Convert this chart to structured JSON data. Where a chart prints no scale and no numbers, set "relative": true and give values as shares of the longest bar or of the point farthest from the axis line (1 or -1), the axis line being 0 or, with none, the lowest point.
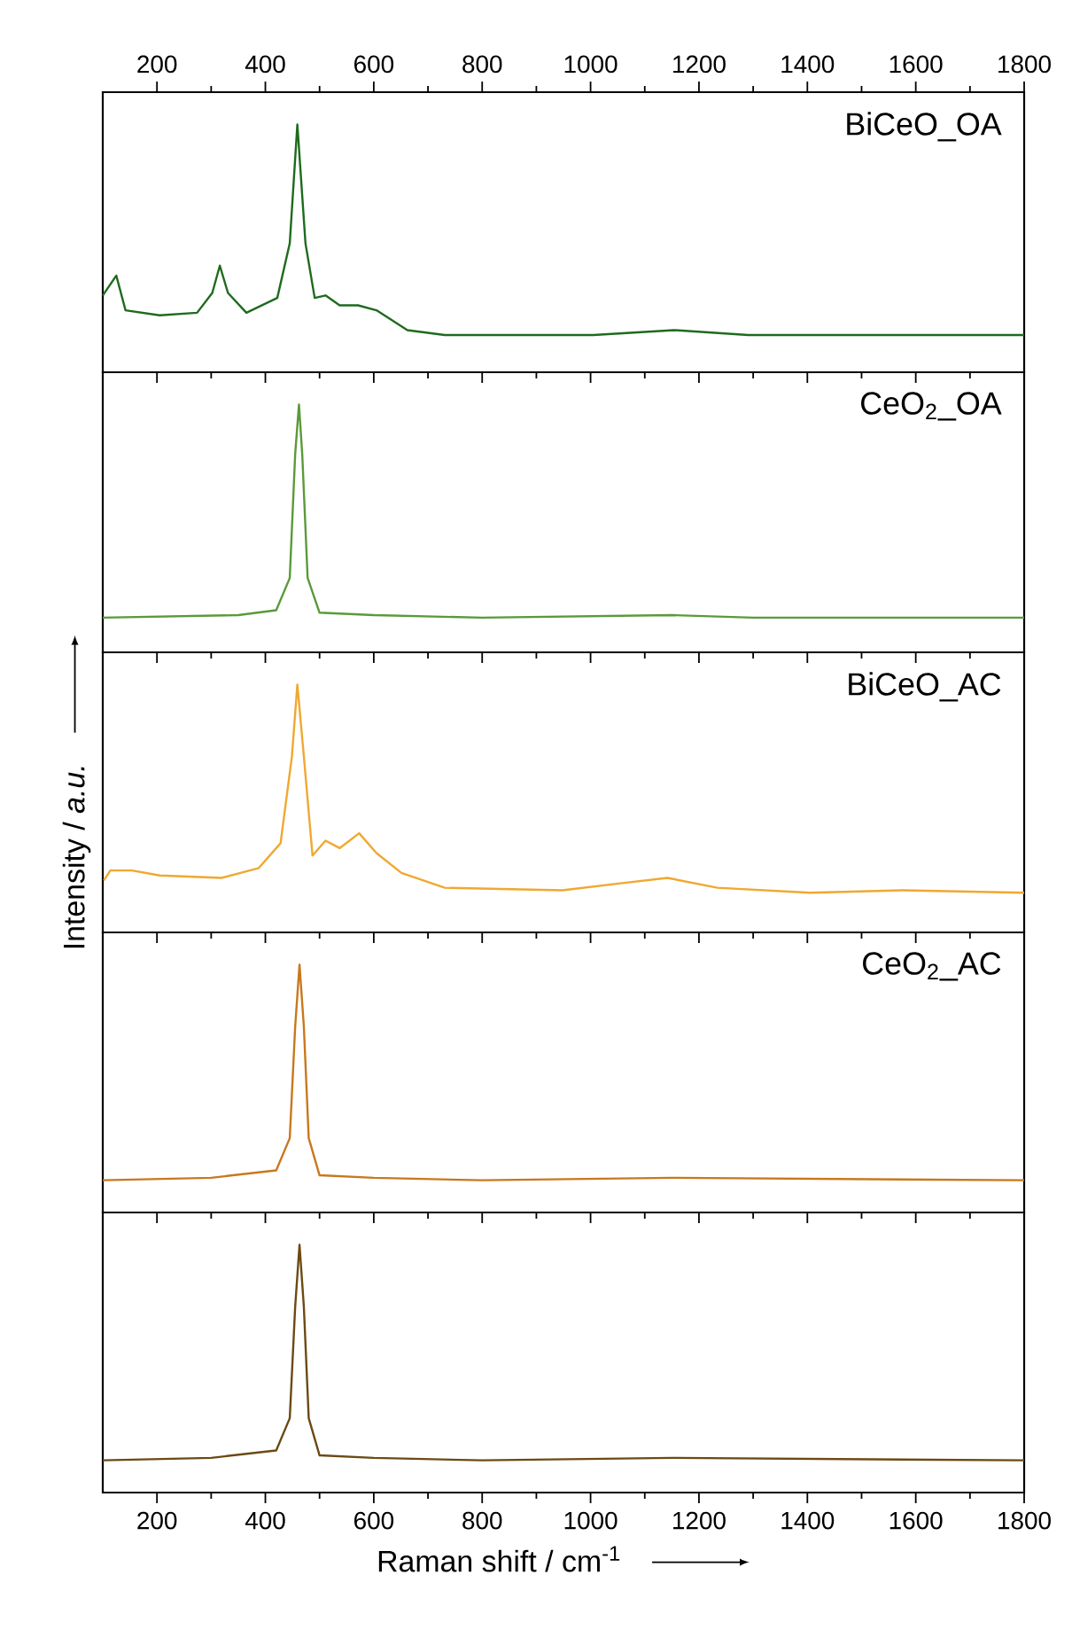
{
  "chart_data": [
    {
      "type": "line",
      "relative": true,
      "xlim": [
        100,
        1800
      ],
      "xticks": [
        200,
        400,
        600,
        800,
        1000,
        1200,
        1400,
        1600,
        1800
      ],
      "tick_labels": "x",
      "grid": false,
      "x": [
        100,
        125,
        142,
        205,
        274,
        302,
        316,
        331,
        365,
        422,
        445,
        459,
        474,
        491,
        511,
        537,
        571,
        605,
        662,
        731,
        1005,
        1154,
        1291,
        1800
      ],
      "series": [
        {
          "name": "BiCeO_OA",
          "color": "#1e6b1e",
          "values": [
            0.31,
            0.39,
            0.25,
            0.23,
            0.24,
            0.32,
            0.43,
            0.32,
            0.24,
            0.3,
            0.52,
            1.0,
            0.52,
            0.3,
            0.31,
            0.27,
            0.27,
            0.25,
            0.17,
            0.15,
            0.15,
            0.17,
            0.15,
            0.15
          ]
        }
      ]
    },
    {
      "type": "line",
      "relative": true,
      "xlim": [
        100,
        1800
      ],
      "xticks": [
        200,
        400,
        600,
        800,
        1000,
        1200,
        1400,
        1600,
        1800
      ],
      "tick_labels": false,
      "grid": false,
      "x": [
        100,
        350,
        420,
        445,
        455,
        462,
        468,
        478,
        500,
        600,
        800,
        1150,
        1300,
        1800
      ],
      "series": [
        {
          "name": "CeO$_{2}$_OA",
          "color": "#5a9a3a",
          "values": [
            0.14,
            0.15,
            0.17,
            0.3,
            0.8,
            1.0,
            0.8,
            0.3,
            0.16,
            0.15,
            0.14,
            0.15,
            0.14,
            0.14
          ]
        }
      ]
    },
    {
      "type": "line",
      "relative": true,
      "xlim": [
        100,
        1800
      ],
      "xticks": [
        200,
        400,
        600,
        800,
        1000,
        1200,
        1400,
        1600,
        1800
      ],
      "tick_labels": false,
      "grid": false,
      "ylabel": "Intensity / *a.u.*",
      "x": [
        102,
        114,
        154,
        205,
        319,
        388,
        428,
        449,
        459,
        471,
        487,
        511,
        537,
        573,
        605,
        651,
        731,
        948,
        1062,
        1142,
        1234,
        1405,
        1577,
        1800
      ],
      "series": [
        {
          "name": "BiCeO_AC",
          "color": "#f0a830",
          "values": [
            0.21,
            0.25,
            0.25,
            0.23,
            0.22,
            0.26,
            0.36,
            0.71,
            1.0,
            0.71,
            0.31,
            0.37,
            0.34,
            0.4,
            0.32,
            0.24,
            0.18,
            0.17,
            0.2,
            0.22,
            0.18,
            0.16,
            0.17,
            0.16
          ]
        }
      ]
    },
    {
      "type": "line",
      "relative": true,
      "xlim": [
        100,
        1800
      ],
      "xticks": [
        200,
        400,
        600,
        800,
        1000,
        1200,
        1400,
        1600,
        1800
      ],
      "tick_labels": false,
      "grid": false,
      "x": [
        100,
        300,
        420,
        445,
        455,
        463,
        471,
        480,
        500,
        600,
        800,
        1150,
        1800
      ],
      "series": [
        {
          "name": "CeO$_{2}$_AC",
          "color": "#c8781e",
          "values": [
            0.13,
            0.14,
            0.17,
            0.3,
            0.75,
            1.0,
            0.75,
            0.3,
            0.15,
            0.14,
            0.13,
            0.14,
            0.13
          ]
        }
      ]
    },
    {
      "type": "line",
      "relative": true,
      "xlim": [
        100,
        1800
      ],
      "xticks": [
        200,
        400,
        600,
        800,
        1000,
        1200,
        1400,
        1600,
        1800
      ],
      "tick_labels": "x",
      "grid": false,
      "xlabel": "Raman shift / cm$^{-1}$",
      "x": [
        100,
        300,
        420,
        445,
        455,
        463,
        471,
        480,
        500,
        600,
        800,
        1150,
        1800
      ],
      "series": [
        {
          "color": "#6b4a14",
          "values": [
            0.13,
            0.14,
            0.17,
            0.3,
            0.75,
            1.0,
            0.75,
            0.3,
            0.15,
            0.14,
            0.13,
            0.14,
            0.13
          ]
        }
      ]
    }
  ]
}
